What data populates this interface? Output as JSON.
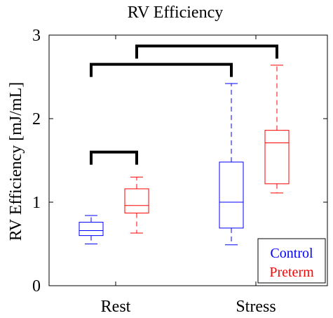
{
  "chart_data": {
    "type": "box",
    "title": "RV Efficiency",
    "ylabel": "RV Efficiency [mJ/mL]",
    "xlabel": "",
    "ylim": [
      0,
      3
    ],
    "yticks": [
      0,
      1,
      2,
      3
    ],
    "categories": [
      "Rest",
      "Stress"
    ],
    "legend_position": "bottom-right",
    "series": [
      {
        "name": "Control",
        "color": "#0000ff",
        "boxes": [
          {
            "category": "Rest",
            "min": 0.5,
            "q1": 0.6,
            "median": 0.66,
            "q3": 0.76,
            "max": 0.84
          },
          {
            "category": "Stress",
            "min": 0.49,
            "q1": 0.69,
            "median": 1.0,
            "q3": 1.48,
            "max": 2.42
          }
        ]
      },
      {
        "name": "Preterm",
        "color": "#ff0000",
        "boxes": [
          {
            "category": "Rest",
            "min": 0.63,
            "q1": 0.87,
            "median": 0.96,
            "q3": 1.16,
            "max": 1.3
          },
          {
            "category": "Stress",
            "min": 1.11,
            "q1": 1.22,
            "median": 1.71,
            "q3": 1.86,
            "max": 2.64
          }
        ]
      }
    ],
    "significance_brackets": [
      {
        "from": "Control-Rest",
        "to": "Preterm-Rest",
        "level": 1.6
      },
      {
        "from": "Control-Rest",
        "to": "Control-Stress",
        "level": 2.65
      },
      {
        "from": "Preterm-Rest",
        "to": "Preterm-Stress",
        "level": 2.87
      }
    ]
  }
}
